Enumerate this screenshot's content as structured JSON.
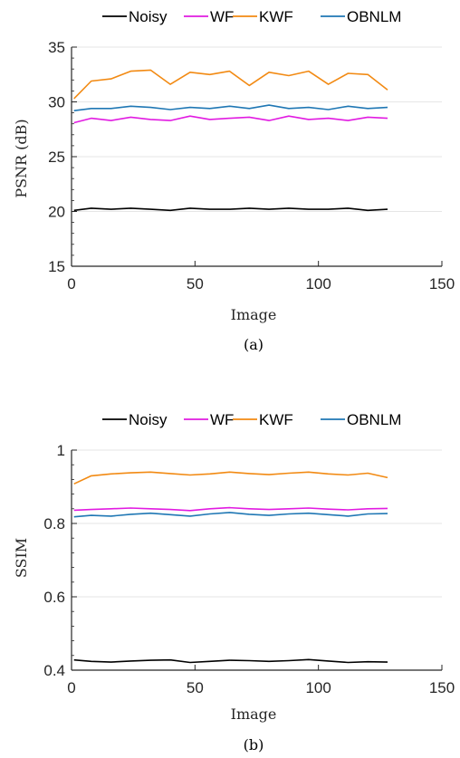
{
  "chart_data": [
    {
      "type": "line",
      "caption": "(a)",
      "xlabel": "Image",
      "ylabel": "PSNR (dB)",
      "xlim": [
        0,
        150
      ],
      "ylim": [
        15,
        35
      ],
      "xticks": [
        0,
        50,
        100,
        150
      ],
      "yticks": [
        15,
        20,
        25,
        30,
        35
      ],
      "grid": "horizontal",
      "legend": "top, horizontal",
      "x": [
        1,
        8,
        16,
        24,
        32,
        40,
        48,
        56,
        64,
        72,
        80,
        88,
        96,
        104,
        112,
        120,
        128
      ],
      "series": [
        {
          "name": "Noisy",
          "color": "#000000",
          "values": [
            20.1,
            20.3,
            20.2,
            20.3,
            20.2,
            20.1,
            20.3,
            20.2,
            20.2,
            20.3,
            20.2,
            20.3,
            20.2,
            20.2,
            20.3,
            20.1,
            20.2
          ]
        },
        {
          "name": "WF",
          "color": "#e11be1",
          "values": [
            28.1,
            28.5,
            28.3,
            28.6,
            28.4,
            28.3,
            28.7,
            28.4,
            28.5,
            28.6,
            28.3,
            28.7,
            28.4,
            28.5,
            28.3,
            28.6,
            28.5
          ]
        },
        {
          "name": "KWF",
          "color": "#f28a13",
          "values": [
            30.3,
            31.9,
            32.1,
            32.8,
            32.9,
            31.6,
            32.7,
            32.5,
            32.8,
            31.5,
            32.7,
            32.4,
            32.8,
            31.6,
            32.6,
            32.5,
            31.1
          ]
        },
        {
          "name": "OBNLM",
          "color": "#1f77b4",
          "values": [
            29.2,
            29.4,
            29.4,
            29.6,
            29.5,
            29.3,
            29.5,
            29.4,
            29.6,
            29.4,
            29.7,
            29.4,
            29.5,
            29.3,
            29.6,
            29.4,
            29.5
          ]
        }
      ]
    },
    {
      "type": "line",
      "caption": "(b)",
      "xlabel": "Image",
      "ylabel": "SSIM",
      "xlim": [
        0,
        150
      ],
      "ylim": [
        0.4,
        1.0
      ],
      "xticks": [
        0,
        50,
        100,
        150
      ],
      "yticks": [
        0.4,
        0.6,
        0.8,
        1.0
      ],
      "ytick_labels": [
        "0.4",
        "0.6",
        "0.8",
        "1"
      ],
      "grid": "horizontal",
      "legend": "top, horizontal",
      "x": [
        1,
        8,
        16,
        24,
        32,
        40,
        48,
        56,
        64,
        72,
        80,
        88,
        96,
        104,
        112,
        120,
        128
      ],
      "series": [
        {
          "name": "Noisy",
          "color": "#000000",
          "values": [
            0.428,
            0.424,
            0.422,
            0.425,
            0.427,
            0.428,
            0.421,
            0.424,
            0.427,
            0.426,
            0.424,
            0.426,
            0.429,
            0.425,
            0.421,
            0.423,
            0.422
          ]
        },
        {
          "name": "WF",
          "color": "#e11be1",
          "values": [
            0.836,
            0.838,
            0.84,
            0.842,
            0.84,
            0.838,
            0.835,
            0.84,
            0.843,
            0.84,
            0.838,
            0.84,
            0.842,
            0.839,
            0.837,
            0.84,
            0.841
          ]
        },
        {
          "name": "KWF",
          "color": "#f28a13",
          "values": [
            0.908,
            0.93,
            0.935,
            0.938,
            0.94,
            0.936,
            0.932,
            0.935,
            0.94,
            0.936,
            0.933,
            0.937,
            0.94,
            0.935,
            0.932,
            0.937,
            0.925
          ]
        },
        {
          "name": "OBNLM",
          "color": "#1f77b4",
          "values": [
            0.818,
            0.822,
            0.82,
            0.825,
            0.828,
            0.824,
            0.82,
            0.826,
            0.83,
            0.825,
            0.822,
            0.826,
            0.828,
            0.824,
            0.82,
            0.826,
            0.827
          ]
        }
      ]
    }
  ]
}
